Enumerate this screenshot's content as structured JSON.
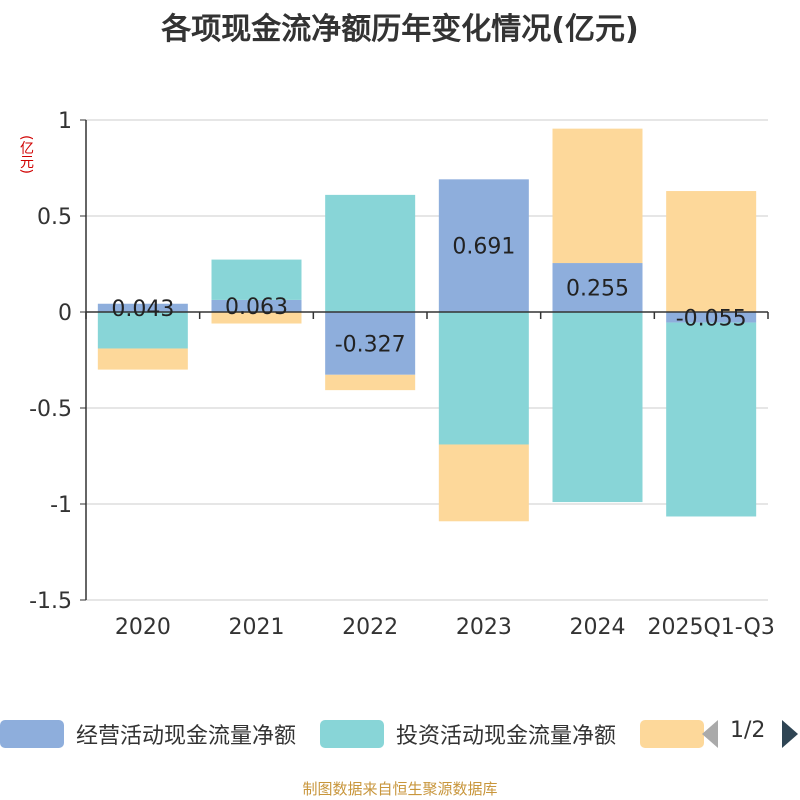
{
  "chart_data": {
    "type": "bar",
    "stacked": true,
    "title": "各项现金流净额历年变化情况(亿元)",
    "ylabel": "(亿元)",
    "ylim": [
      -1.5,
      1
    ],
    "yticks": [
      1,
      0.5,
      0,
      -0.5,
      -1,
      -1.5
    ],
    "ytick_labels": [
      "1",
      "0.5",
      "0",
      "-0.5",
      "-1",
      "-1.5"
    ],
    "categories": [
      "2020",
      "2021",
      "2022",
      "2023",
      "2024",
      "2025Q1-Q3"
    ],
    "series": [
      {
        "name": "经营活动现金流量净额",
        "color": "#8eaedc",
        "values": [
          0.043,
          0.063,
          -0.327,
          0.691,
          0.255,
          -0.055
        ],
        "labels": [
          "0.043",
          "0.063",
          "-0.327",
          "0.691",
          "0.255",
          "-0.055"
        ]
      },
      {
        "name": "投资活动现金流量净额",
        "color": "#88d5d7",
        "values": [
          -0.19,
          0.21,
          0.61,
          -0.69,
          -0.99,
          -1.01
        ]
      },
      {
        "name": "",
        "color": "#fdd89a",
        "values": [
          -0.11,
          -0.06,
          -0.08,
          -0.4,
          0.7,
          0.63
        ]
      }
    ],
    "legend": {
      "position": "bottom",
      "page": "1/2"
    },
    "source": "制图数据来自恒生聚源数据库"
  }
}
